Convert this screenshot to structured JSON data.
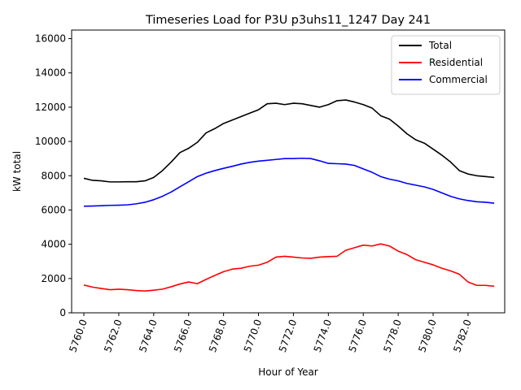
{
  "chart_data": {
    "type": "line",
    "title": "Timeseries Load for P3U p3uhs11_1247  Day 241",
    "xlabel": "Hour of Year",
    "ylabel": "kW total",
    "xlim": [
      5759.3,
      5784.1
    ],
    "ylim": [
      0,
      16500
    ],
    "xticks": [
      5760,
      5762,
      5764,
      5766,
      5768,
      5770,
      5772,
      5774,
      5776,
      5778,
      5780,
      5782
    ],
    "xtick_labels": [
      "5760.0",
      "5762.0",
      "5764.0",
      "5766.0",
      "5768.0",
      "5770.0",
      "5772.0",
      "5774.0",
      "5776.0",
      "5778.0",
      "5780.0",
      "5782.0"
    ],
    "yticks": [
      0,
      2000,
      4000,
      6000,
      8000,
      10000,
      12000,
      14000,
      16000
    ],
    "ytick_labels": [
      "0",
      "2000",
      "4000",
      "6000",
      "8000",
      "10000",
      "12000",
      "14000",
      "16000"
    ],
    "legend_position": "top-right",
    "x": [
      5760,
      5760.5,
      5761,
      5761.5,
      5762,
      5762.5,
      5763,
      5763.5,
      5764,
      5764.5,
      5765,
      5765.5,
      5766,
      5766.5,
      5767,
      5767.5,
      5768,
      5768.5,
      5769,
      5769.5,
      5770,
      5770.5,
      5771,
      5771.5,
      5772,
      5772.5,
      5773,
      5773.5,
      5774,
      5774.5,
      5775,
      5775.5,
      5776,
      5776.5,
      5777,
      5777.5,
      5778,
      5778.5,
      5779,
      5779.5,
      5780,
      5780.5,
      5781,
      5781.5,
      5782,
      5782.5,
      5783,
      5783.5
    ],
    "series": [
      {
        "name": "Total",
        "color": "#000000",
        "values": [
          7850,
          7730,
          7700,
          7640,
          7640,
          7650,
          7650,
          7700,
          7900,
          8300,
          8800,
          9350,
          9600,
          9950,
          10500,
          10750,
          11050,
          11250,
          11450,
          11650,
          11850,
          12200,
          12230,
          12150,
          12230,
          12200,
          12100,
          12000,
          12150,
          12380,
          12420,
          12300,
          12150,
          11950,
          11500,
          11300,
          10900,
          10450,
          10100,
          9900,
          9550,
          9200,
          8800,
          8300,
          8100,
          8000,
          7950,
          7900
        ]
      },
      {
        "name": "Residential",
        "color": "#ff0000",
        "values": [
          1620,
          1500,
          1420,
          1350,
          1380,
          1350,
          1300,
          1270,
          1320,
          1380,
          1520,
          1680,
          1800,
          1700,
          1950,
          2180,
          2400,
          2550,
          2600,
          2720,
          2780,
          2950,
          3250,
          3300,
          3250,
          3200,
          3180,
          3250,
          3280,
          3300,
          3650,
          3800,
          3950,
          3900,
          4020,
          3900,
          3600,
          3400,
          3100,
          2950,
          2800,
          2600,
          2450,
          2250,
          1800,
          1600,
          1600,
          1550
        ]
      },
      {
        "name": "Commercial",
        "color": "#0000ff",
        "values": [
          6220,
          6230,
          6250,
          6270,
          6280,
          6300,
          6360,
          6450,
          6600,
          6800,
          7050,
          7350,
          7650,
          7950,
          8150,
          8300,
          8430,
          8550,
          8680,
          8780,
          8850,
          8900,
          8950,
          9000,
          9000,
          9020,
          9000,
          8870,
          8720,
          8700,
          8680,
          8600,
          8400,
          8200,
          7950,
          7800,
          7700,
          7550,
          7450,
          7350,
          7200,
          7000,
          6800,
          6650,
          6550,
          6480,
          6450,
          6400
        ]
      }
    ]
  }
}
